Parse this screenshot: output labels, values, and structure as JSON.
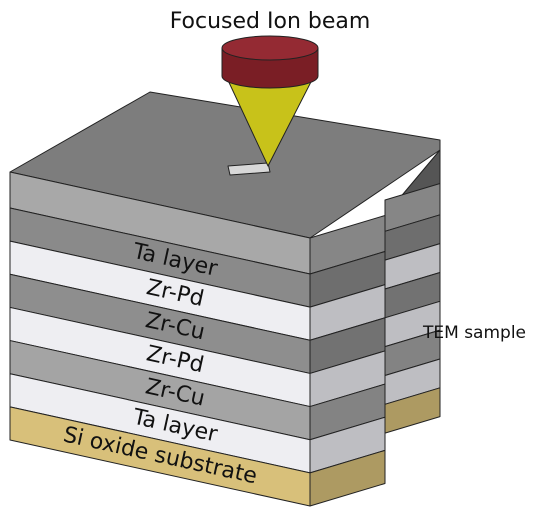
{
  "title": "Focused Ion beam",
  "layers": [
    "Ta layer",
    "Zr-Pd",
    "Zr-Cu",
    "Zr-Pd",
    "Zr-Cu",
    "Ta layer",
    "Si oxide substrate"
  ],
  "sample_label": "TEM sample"
}
